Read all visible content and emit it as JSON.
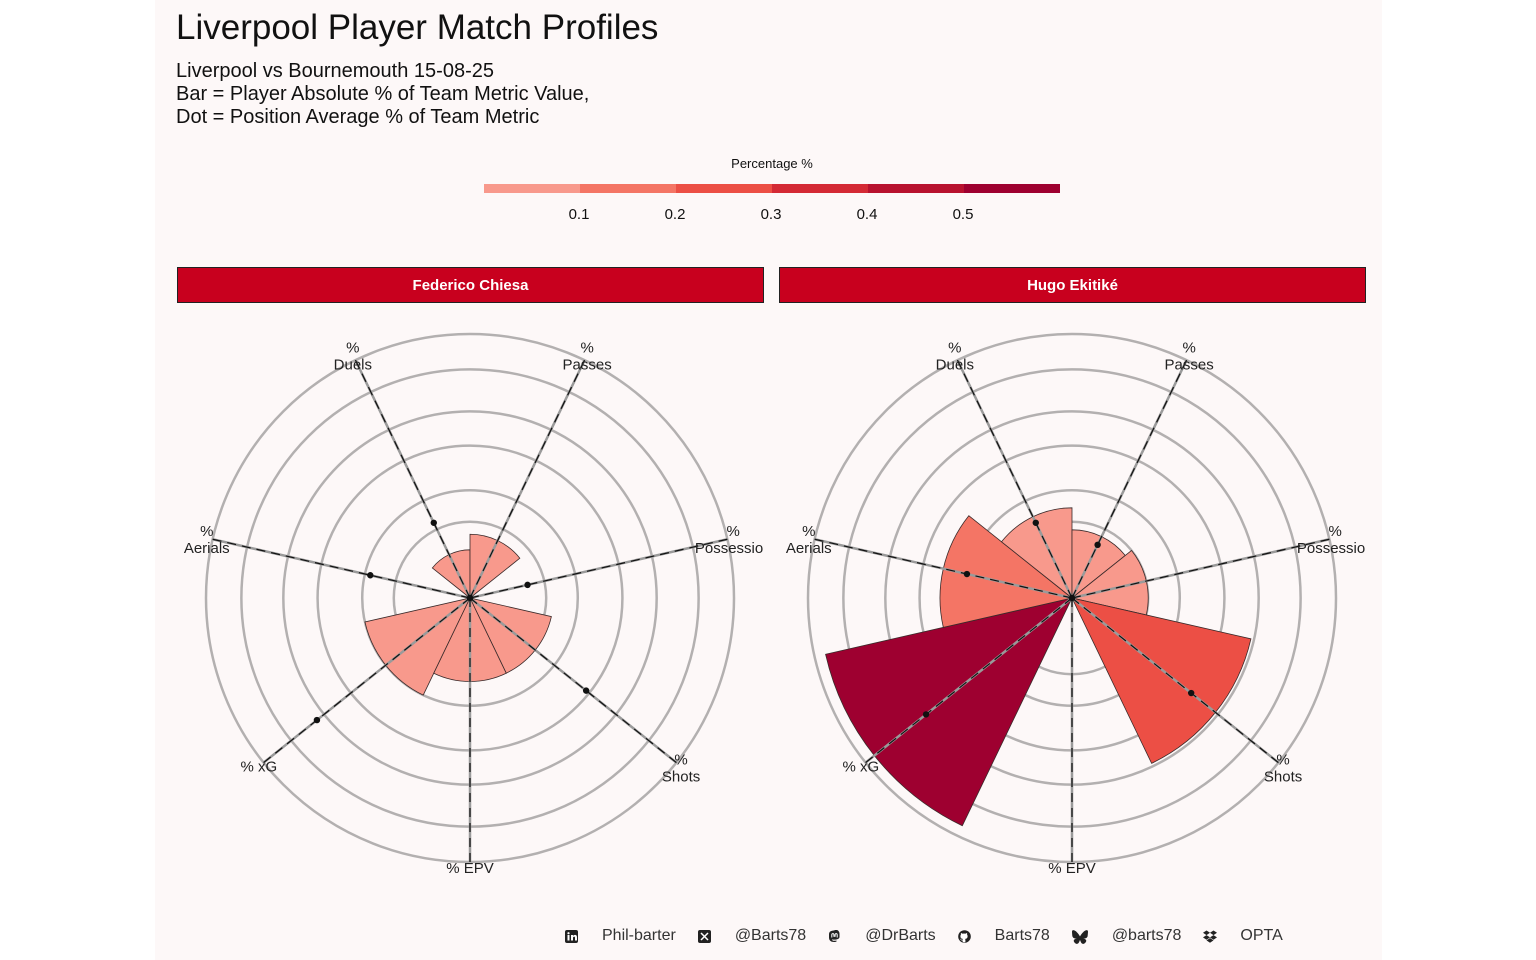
{
  "title": "Liverpool Player Match Profiles",
  "subtitle_lines": [
    "Liverpool vs Bournemouth 15-08-25",
    "Bar = Player Absolute % of Team Metric Value,",
    "Dot = Position Average % of Team Metric"
  ],
  "legend": {
    "title": "Percentage %",
    "ticks": [
      "0.1",
      "0.2",
      "0.3",
      "0.4",
      "0.5"
    ],
    "colors": [
      "#f8998c",
      "#f47565",
      "#ec4f45",
      "#d42a35",
      "#b8122f",
      "#9e0030"
    ]
  },
  "chart_data": [
    {
      "type": "radar-bar",
      "panel_title": "Federico Chiesa",
      "axes": [
        "% xG",
        "% Aerials",
        "% Duels",
        "% Passes",
        "% Possession",
        "% Shots",
        "% EPV"
      ],
      "bar_values": [
        0.1,
        0.0,
        0.02,
        0.035,
        0.0,
        0.06,
        0.06
      ],
      "bar_colors": [
        "#f8998c",
        "#f8998c",
        "#f8998c",
        "#f8998c",
        "#f8998c",
        "#f8998c",
        "#f8998c"
      ],
      "dot_values": [
        0.33,
        0.09,
        0.06,
        0.0,
        0.03,
        0.19,
        0.0
      ],
      "rmax": 0.6,
      "grid_rings": 5
    },
    {
      "type": "radar-bar",
      "panel_title": "Hugo Ekitiké",
      "axes": [
        "% xG",
        "% Aerials",
        "% Duels",
        "% Passes",
        "% Possession",
        "% Shots",
        "% EPV"
      ],
      "bar_values": [
        0.55,
        0.15,
        0.07,
        0.04,
        0.05,
        0.29,
        0.0
      ],
      "bar_colors": [
        "#9e0030",
        "#f47565",
        "#f8998c",
        "#f8998c",
        "#f8998c",
        "#ec4f45",
        "#f8998c"
      ],
      "dot_values": [
        0.3,
        0.1,
        0.06,
        0.03,
        0.0,
        0.2,
        0.0
      ],
      "rmax": 0.6,
      "grid_rings": 5
    }
  ],
  "footer": [
    {
      "icon": "linkedin-icon",
      "text": "Phil-barter"
    },
    {
      "icon": "x-twitter-icon",
      "text": "@Barts78"
    },
    {
      "icon": "mastodon-icon",
      "text": "@DrBarts"
    },
    {
      "icon": "github-icon",
      "text": "Barts78"
    },
    {
      "icon": "bluesky-icon",
      "text": "@barts78"
    },
    {
      "icon": "dropbox-icon",
      "text": "OPTA"
    }
  ]
}
